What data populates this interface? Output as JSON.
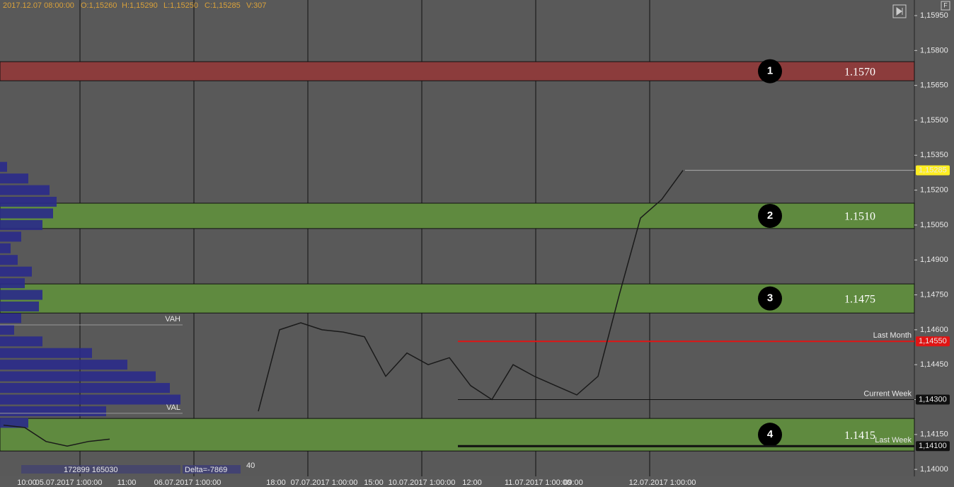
{
  "header": {
    "datetime": "2017.12.07 08:00:00",
    "open": "O:1,15260",
    "high": "H:1,15290",
    "low": "L:1,15250",
    "close": "C:1,15285",
    "volume": "V:307"
  },
  "footer": {
    "volumes": "172899 165030",
    "delta": "Delta=-7869",
    "count": "40"
  },
  "chart_data": {
    "type": "line",
    "color": "#1a1a1a",
    "ylim": [
      1.1397,
      1.16017
    ],
    "yticks": [
      {
        "value": 1.1595,
        "label": "1,15950"
      },
      {
        "value": 1.158,
        "label": "1,15800"
      },
      {
        "value": 1.1565,
        "label": "1,15650"
      },
      {
        "value": 1.155,
        "label": "1,15500"
      },
      {
        "value": 1.1535,
        "label": "1,15350"
      },
      {
        "value": 1.152,
        "label": "1,15200"
      },
      {
        "value": 1.1505,
        "label": "1,15050"
      },
      {
        "value": 1.149,
        "label": "1,14900"
      },
      {
        "value": 1.1475,
        "label": "1,14750"
      },
      {
        "value": 1.146,
        "label": "1,14600"
      },
      {
        "value": 1.1445,
        "label": "1,14450"
      },
      {
        "value": 1.143,
        "label": "1,14300"
      },
      {
        "value": 1.1415,
        "label": "1,14150"
      },
      {
        "value": 1.14,
        "label": "1,14000"
      }
    ],
    "values": [
      1.1419,
      1.1418,
      1.1412,
      1.141,
      1.1412,
      1.1413,
      null,
      null,
      null,
      null,
      null,
      null,
      1.1425,
      1.146,
      1.1463,
      1.146,
      1.1459,
      1.1457,
      1.144,
      1.145,
      1.1445,
      1.1448,
      1.1436,
      1.143,
      1.1445,
      1.144,
      1.1436,
      1.1432,
      1.144,
      1.1475,
      1.1508,
      1.1516,
      1.15285
    ],
    "x_labels": [
      "10:00",
      "05.07.2017 1:00:00",
      "11:00",
      "06.07.2017 1:00:00",
      "18:00",
      "07.07.2017 1:00:00",
      "15:00",
      "10.07.2017 1:00:00",
      "12:00",
      "11.07.2017 1:00:00",
      "09:00",
      "12.07.2017 1:00:00"
    ],
    "zones": [
      {
        "number": "1",
        "label": "1.1570",
        "low": 1.1567,
        "high": 1.15752,
        "color": "#8c3c3c"
      },
      {
        "number": "2",
        "label": "1.1510",
        "low": 1.15035,
        "high": 1.15144,
        "color": "#5f8a3f"
      },
      {
        "number": "3",
        "label": "1.1475",
        "low": 1.14672,
        "high": 1.14797,
        "color": "#5f8a3f"
      },
      {
        "number": "4",
        "label": "1.1415",
        "low": 1.14079,
        "high": 1.14219,
        "color": "#5f8a3f"
      }
    ],
    "levels": [
      {
        "name": "Last Month",
        "value": 1.1455,
        "label": "1,14550",
        "color": "#e01414",
        "width": 2
      },
      {
        "name": "Current Week",
        "value": 1.143,
        "label": "1,14300",
        "color": "#111111",
        "width": 1
      },
      {
        "name": "Last Week",
        "value": 1.141,
        "label": "1,14100",
        "color": "#111111",
        "width": 3
      }
    ],
    "current_price": {
      "value": 1.15285,
      "label": "1,15285",
      "color": "#ffee22"
    },
    "value_area": [
      {
        "name": "VAH",
        "value": 1.14621
      },
      {
        "name": "VAL",
        "value": 1.14241
      }
    ],
    "volume_profile": {
      "color": "#2a2a8a",
      "prices": [
        1.153,
        1.1525,
        1.152,
        1.1515,
        1.151,
        1.1505,
        1.15,
        1.1495,
        1.149,
        1.1485,
        1.148,
        1.1475,
        1.147,
        1.1465,
        1.146,
        1.1455,
        1.145,
        1.1445,
        1.144,
        1.1435,
        1.143,
        1.1425,
        1.142
      ],
      "values": [
        10,
        40,
        70,
        80,
        75,
        60,
        30,
        15,
        25,
        45,
        35,
        60,
        55,
        30,
        20,
        60,
        130,
        180,
        220,
        240,
        255,
        150,
        40
      ]
    }
  }
}
